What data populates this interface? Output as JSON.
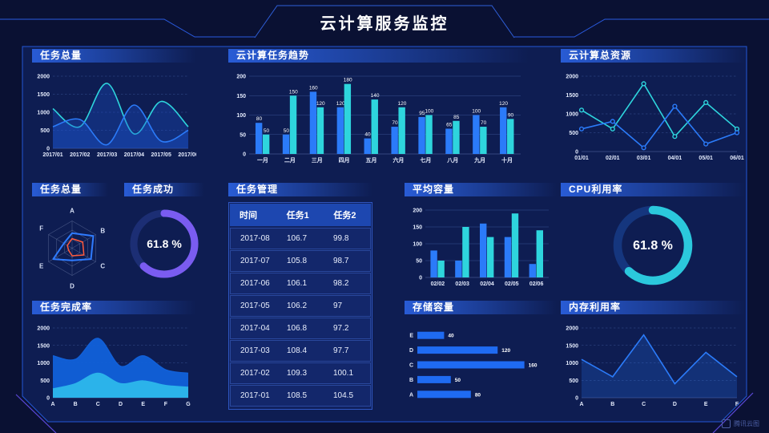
{
  "header": {
    "title": "云计算服务监控"
  },
  "watermark": {
    "label": "腾讯云图"
  },
  "colors": {
    "background_outer": "#0a1133",
    "background_inner": "#0e1d52",
    "frame_line": "#2457d6",
    "accent_blue": "#2b7bf9",
    "accent_cyan": "#2ed5dd",
    "accent_purple": "#7a5cf0",
    "accent_orange": "#ff5a3c"
  },
  "panels": {
    "task_total_trend": {
      "title": "任务总量",
      "chart": {
        "type": "area",
        "smooth": true,
        "x": [
          "2017/01",
          "2017/02",
          "2017/03",
          "2017/04",
          "2017/05",
          "2017/06"
        ],
        "ylim": [
          0,
          2000
        ],
        "yticks": [
          0,
          500,
          1000,
          1500,
          2000
        ],
        "series": [
          {
            "name": "cyan-series",
            "color": "#2ed5dd",
            "fill": "#1e56d6",
            "fill_opacity": 0.3,
            "values": [
              1100,
              600,
              1800,
              400,
              1300,
              600
            ]
          },
          {
            "name": "blue-series",
            "color": "#2b7bf9",
            "fill": "#1e56d6",
            "fill_opacity": 0.35,
            "values": [
              600,
              800,
              100,
              1200,
              200,
              500
            ]
          }
        ]
      }
    },
    "cloud_task_trend": {
      "title": "云计算任务趋势",
      "chart": {
        "type": "bar",
        "show_labels": true,
        "categories": [
          "一月",
          "二月",
          "三月",
          "四月",
          "五月",
          "六月",
          "七月",
          "八月",
          "九月",
          "十月"
        ],
        "ylim": [
          0,
          200
        ],
        "yticks": [
          0,
          50,
          100,
          150,
          200
        ],
        "series": [
          {
            "name": "blue-series",
            "color": "#2b7bf9",
            "values": [
              80,
              50,
              160,
              120,
              40,
              70,
              95,
              65,
              100,
              120
            ]
          },
          {
            "name": "cyan-series",
            "color": "#2ed5dd",
            "values": [
              50,
              150,
              120,
              180,
              140,
              120,
              100,
              85,
              70,
              90
            ]
          }
        ]
      }
    },
    "cloud_total_resource": {
      "title": "云计算总资源",
      "chart": {
        "type": "line",
        "markers": true,
        "x": [
          "01/01",
          "02/01",
          "03/01",
          "04/01",
          "05/01",
          "06/01"
        ],
        "ylim": [
          0,
          2000
        ],
        "yticks": [
          0,
          500,
          1000,
          1500,
          2000
        ],
        "series": [
          {
            "name": "cyan-series",
            "color": "#2ed5dd",
            "values": [
              1100,
              600,
              1800,
              400,
              1300,
              600
            ]
          },
          {
            "name": "blue-series",
            "color": "#2b7bf9",
            "values": [
              600,
              800,
              100,
              1200,
              200,
              500
            ]
          }
        ]
      }
    },
    "task_total_radar": {
      "title": "任务总量",
      "chart": {
        "type": "radar",
        "max": 100,
        "axes": [
          "A",
          "B",
          "C",
          "D",
          "E",
          "F"
        ],
        "series": [
          {
            "name": "blue-polygon",
            "color": "#2f7bff",
            "values": [
              55,
              90,
              80,
              45,
              80,
              35
            ]
          },
          {
            "name": "orange-polygon",
            "color": "#ff5a3c",
            "values": [
              35,
              45,
              50,
              28,
              15,
              20
            ]
          }
        ]
      }
    },
    "task_success": {
      "title": "任务成功",
      "chart": {
        "type": "donut",
        "value": 61.8,
        "label": "61.8 %",
        "color": "#7a5cf0",
        "track": "#1c2e74"
      }
    },
    "task_table": {
      "title": "任务管理",
      "columns": [
        "时间",
        "任务1",
        "任务2"
      ],
      "rows": [
        [
          "2017-08",
          "106.7",
          "99.8"
        ],
        [
          "2017-07",
          "105.8",
          "98.7"
        ],
        [
          "2017-06",
          "106.1",
          "98.2"
        ],
        [
          "2017-05",
          "106.2",
          "97"
        ],
        [
          "2017-04",
          "106.8",
          "97.2"
        ],
        [
          "2017-03",
          "108.4",
          "97.7"
        ],
        [
          "2017-02",
          "109.3",
          "100.1"
        ],
        [
          "2017-01",
          "108.5",
          "104.5"
        ]
      ]
    },
    "avg_capacity": {
      "title": "平均容量",
      "chart": {
        "type": "bar",
        "show_labels": false,
        "categories": [
          "02/02",
          "02/03",
          "02/04",
          "02/05",
          "02/06"
        ],
        "ylim": [
          0,
          200
        ],
        "yticks": [
          0,
          50,
          100,
          150,
          200
        ],
        "series": [
          {
            "name": "blue-series",
            "color": "#2b7bf9",
            "values": [
              80,
              50,
              160,
              120,
              40
            ]
          },
          {
            "name": "cyan-series",
            "color": "#2ed5dd",
            "values": [
              50,
              150,
              120,
              190,
              140
            ]
          }
        ]
      }
    },
    "cpu_usage": {
      "title": "CPU利用率",
      "chart": {
        "type": "donut",
        "value": 61.8,
        "label": "61.8 %",
        "color": "#2bc8dc",
        "track": "#15367e"
      }
    },
    "task_completion": {
      "title": "任务完成率",
      "chart": {
        "type": "area",
        "smooth": true,
        "x": [
          "A",
          "B",
          "C",
          "D",
          "E",
          "F",
          "G"
        ],
        "ylim": [
          0,
          2000
        ],
        "yticks": [
          0,
          500,
          1000,
          1500,
          2000
        ],
        "series": [
          {
            "name": "blue-area",
            "color": "#1160d8",
            "fill": "#1160d8",
            "fill_opacity": 0.96,
            "values": [
              1200,
              1100,
              1700,
              900,
              1200,
              800,
              700
            ]
          },
          {
            "name": "cyan-area",
            "color": "#2bb3ea",
            "fill": "#2bb3ea",
            "fill_opacity": 1,
            "values": [
              250,
              400,
              700,
              400,
              480,
              350,
              300
            ]
          }
        ]
      }
    },
    "storage_capacity": {
      "title": "存储容量",
      "chart": {
        "type": "hbar",
        "xmax": 170,
        "color": "#1f6bf2",
        "categories": [
          "E",
          "D",
          "C",
          "B",
          "A"
        ],
        "values": [
          40,
          120,
          160,
          50,
          80
        ]
      }
    },
    "memory_usage": {
      "title": "内存利用率",
      "chart": {
        "type": "line",
        "markers": false,
        "x": [
          "A",
          "B",
          "C",
          "D",
          "E",
          "F"
        ],
        "ylim": [
          0,
          2000
        ],
        "yticks": [
          0,
          500,
          1000,
          1500,
          2000
        ],
        "series": [
          {
            "name": "blue-series",
            "color": "#2b7bf9",
            "fill": "#2b7bf9",
            "fill_opacity": 0.22,
            "values": [
              1100,
              600,
              1800,
              400,
              1300,
              600
            ]
          }
        ]
      }
    }
  }
}
